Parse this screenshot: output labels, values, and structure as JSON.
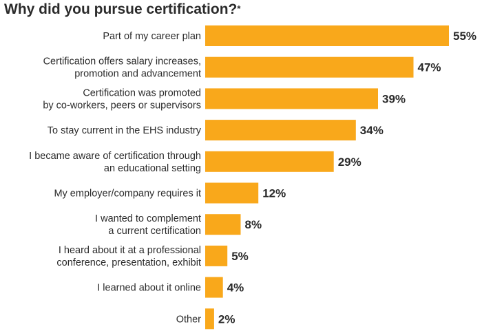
{
  "chart_data": {
    "type": "bar",
    "orientation": "horizontal",
    "title": "Why did you pursue certification?",
    "title_mark": "*",
    "categories": [
      [
        "Part of my career plan"
      ],
      [
        "Certification offers salary increases,",
        "promotion and advancement"
      ],
      [
        "Certification was promoted",
        "by co-workers, peers or supervisors"
      ],
      [
        "To stay current in the EHS industry"
      ],
      [
        "I became aware of certification through",
        "an educational setting"
      ],
      [
        "My employer/company requires it"
      ],
      [
        "I wanted to complement",
        "a current certification"
      ],
      [
        "I heard about it at a professional",
        "conference, presentation, exhibit"
      ],
      [
        "I learned about it online"
      ],
      [
        "Other"
      ]
    ],
    "values": [
      55,
      47,
      39,
      34,
      29,
      12,
      8,
      5,
      4,
      2
    ],
    "value_labels": [
      "55%",
      "47%",
      "39%",
      "34%",
      "29%",
      "12%",
      "8%",
      "5%",
      "4%",
      "2%"
    ],
    "unit": "%",
    "xlim": [
      0,
      55
    ],
    "grid": false,
    "legend": "none",
    "bar_color": "#F9A81B",
    "text_color": "#2b2b2b"
  }
}
